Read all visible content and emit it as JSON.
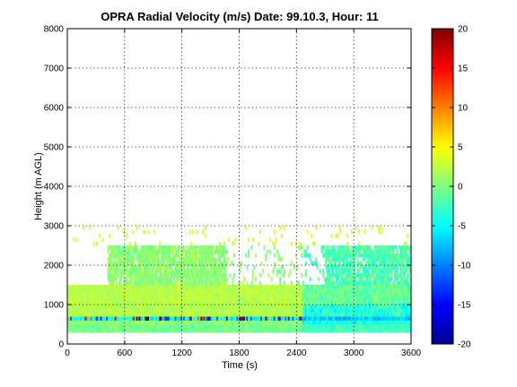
{
  "chart_data": {
    "type": "heatmap",
    "title": "OPRA Radial Velocity (m/s)  Date: 99.10.3, Hour: 11",
    "xlabel": "Time (s)",
    "ylabel": "Height (m AGL)",
    "xlim": [
      0,
      3600
    ],
    "ylim": [
      0,
      8000
    ],
    "x_ticks": [
      "0",
      "600",
      "1200",
      "1800",
      "2400",
      "3000",
      "3600"
    ],
    "y_ticks": [
      "0",
      "1000",
      "2000",
      "3000",
      "4000",
      "5000",
      "6000",
      "7000",
      "8000"
    ],
    "grid": true,
    "colorbar": {
      "colormap": "jet",
      "range": [
        -20,
        20
      ],
      "ticks": [
        "20",
        "15",
        "10",
        "5",
        "0",
        "-5",
        "-10",
        "-15",
        "-20"
      ]
    },
    "data_summary": {
      "layers": [
        {
          "height_range": [
            300,
            500
          ],
          "velocity_approx": -2
        },
        {
          "height_range": [
            600,
            700
          ],
          "velocity_approx": -8,
          "note": "speckled extremes ±20"
        },
        {
          "height_range": [
            700,
            1500
          ],
          "velocity_approx": 1
        },
        {
          "height_range": [
            1500,
            2500
          ],
          "velocity_approx": 0
        },
        {
          "height_range": [
            2500,
            3000
          ],
          "velocity_approx": 2,
          "note": "sparse"
        }
      ]
    }
  }
}
